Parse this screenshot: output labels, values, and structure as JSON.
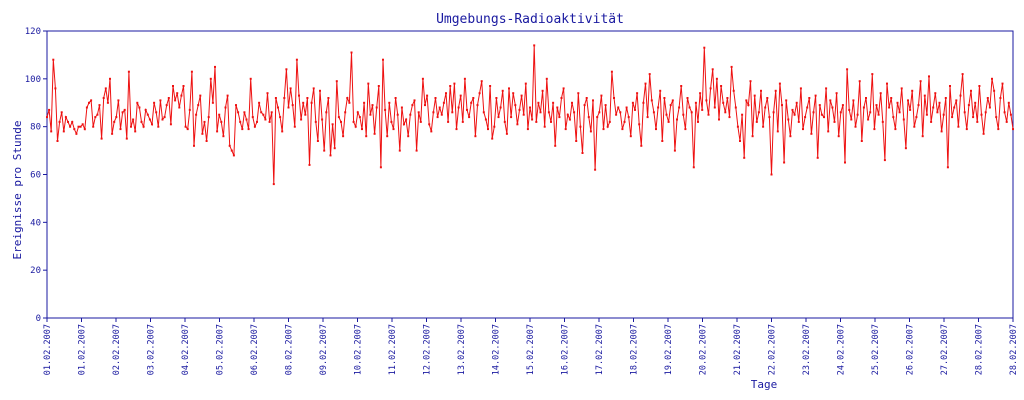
{
  "chart_data": {
    "type": "line",
    "title": "Umgebungs-Radioaktivität",
    "xlabel": "Tage",
    "ylabel": "Ereignisse pro Stunde",
    "ylim": [
      0,
      120
    ],
    "yticks": [
      "0",
      "20",
      "40",
      "60",
      "80",
      "100",
      "120"
    ],
    "x_tick_labels": [
      "01.02.2007",
      "01.02.2007",
      "02.02.2007",
      "03.02.2007",
      "04.02.2007",
      "05.02.2007",
      "06.02.2007",
      "08.02.2007",
      "09.02.2007",
      "10.02.2007",
      "11.02.2007",
      "12.02.2007",
      "13.02.2007",
      "14.02.2007",
      "15.02.2007",
      "16.02.2007",
      "17.02.2007",
      "18.02.2007",
      "19.02.2007",
      "20.02.2007",
      "21.02.2007",
      "22.02.2007",
      "23.02.2007",
      "24.02.2007",
      "25.02.2007",
      "26.02.2007",
      "27.02.2007",
      "28.02.2007",
      "28.02.2007"
    ],
    "grid": false,
    "legend": "none",
    "series_color": "#ee1111",
    "axis_color": "#1a1aa0",
    "series": [
      {
        "values": [
          84,
          87,
          78,
          108,
          96,
          74,
          82,
          86,
          78,
          84,
          82,
          80,
          82,
          79,
          77,
          80,
          80,
          81,
          79,
          88,
          90,
          91,
          80,
          84,
          85,
          89,
          75,
          92,
          96,
          90,
          100,
          77,
          82,
          84,
          91,
          79,
          86,
          87,
          75,
          103,
          80,
          83,
          78,
          90,
          88,
          82,
          80,
          87,
          85,
          83,
          81,
          90,
          86,
          80,
          91,
          83,
          84,
          89,
          92,
          81,
          97,
          91,
          94,
          88,
          93,
          97,
          80,
          79,
          87,
          103,
          72,
          85,
          89,
          93,
          77,
          82,
          74,
          84,
          100,
          90,
          105,
          78,
          85,
          82,
          76,
          88,
          93,
          72,
          70,
          68,
          89,
          86,
          82,
          79,
          86,
          83,
          79,
          100,
          84,
          80,
          82,
          90,
          86,
          85,
          83,
          94,
          82,
          86,
          56,
          92,
          88,
          84,
          78,
          92,
          104,
          88,
          96,
          89,
          80,
          108,
          93,
          83,
          90,
          85,
          92,
          64,
          90,
          96,
          82,
          74,
          95,
          83,
          70,
          86,
          92,
          68,
          81,
          71,
          99,
          84,
          82,
          76,
          86,
          92,
          90,
          111,
          82,
          80,
          86,
          84,
          79,
          90,
          76,
          98,
          85,
          89,
          77,
          88,
          97,
          63,
          108,
          87,
          76,
          90,
          82,
          79,
          92,
          85,
          70,
          88,
          81,
          83,
          76,
          85,
          89,
          91,
          70,
          86,
          82,
          100,
          89,
          93,
          81,
          78,
          86,
          92,
          84,
          88,
          85,
          90,
          94,
          82,
          97,
          86,
          98,
          79,
          88,
          93,
          82,
          100,
          87,
          84,
          90,
          92,
          76,
          89,
          94,
          99,
          86,
          83,
          79,
          97,
          75,
          80,
          92,
          84,
          88,
          95,
          82,
          77,
          96,
          84,
          94,
          89,
          81,
          87,
          93,
          85,
          98,
          79,
          88,
          83,
          114,
          82,
          90,
          86,
          95,
          80,
          100,
          86,
          82,
          90,
          72,
          88,
          84,
          92,
          96,
          79,
          85,
          83,
          90,
          86,
          74,
          94,
          80,
          69,
          89,
          92,
          84,
          78,
          91,
          62,
          84,
          86,
          93,
          79,
          89,
          80,
          82,
          103,
          92,
          85,
          88,
          86,
          79,
          82,
          88,
          84,
          76,
          90,
          87,
          94,
          81,
          72,
          90,
          98,
          84,
          102,
          91,
          86,
          79,
          88,
          95,
          74,
          92,
          85,
          82,
          89,
          91,
          70,
          83,
          88,
          97,
          85,
          79,
          92,
          88,
          86,
          63,
          90,
          82,
          94,
          87,
          113,
          91,
          85,
          96,
          104,
          88,
          100,
          83,
          97,
          90,
          86,
          92,
          84,
          105,
          95,
          88,
          80,
          74,
          85,
          67,
          91,
          89,
          99,
          76,
          93,
          82,
          86,
          95,
          80,
          88,
          92,
          84,
          60,
          86,
          95,
          78,
          98,
          89,
          65,
          91,
          83,
          76,
          87,
          85,
          90,
          82,
          96,
          79,
          84,
          88,
          92,
          77,
          86,
          93,
          67,
          89,
          85,
          84,
          96,
          78,
          91,
          88,
          82,
          94,
          76,
          86,
          89,
          65,
          104,
          87,
          83,
          91,
          80,
          85,
          99,
          74,
          88,
          92,
          83,
          86,
          102,
          79,
          89,
          85,
          94,
          82,
          66,
          98,
          88,
          92,
          84,
          79,
          90,
          86,
          96,
          83,
          71,
          91,
          87,
          95,
          80,
          84,
          89,
          99,
          76,
          93,
          85,
          101,
          82,
          88,
          94,
          86,
          90,
          78,
          85,
          92,
          63,
          97,
          84,
          88,
          91,
          80,
          93,
          102,
          86,
          79,
          89,
          95,
          84,
          90,
          82,
          97,
          85,
          77,
          86,
          92,
          88,
          100,
          95,
          84,
          79,
          92,
          98,
          86,
          82,
          90,
          85,
          79
        ]
      }
    ]
  }
}
